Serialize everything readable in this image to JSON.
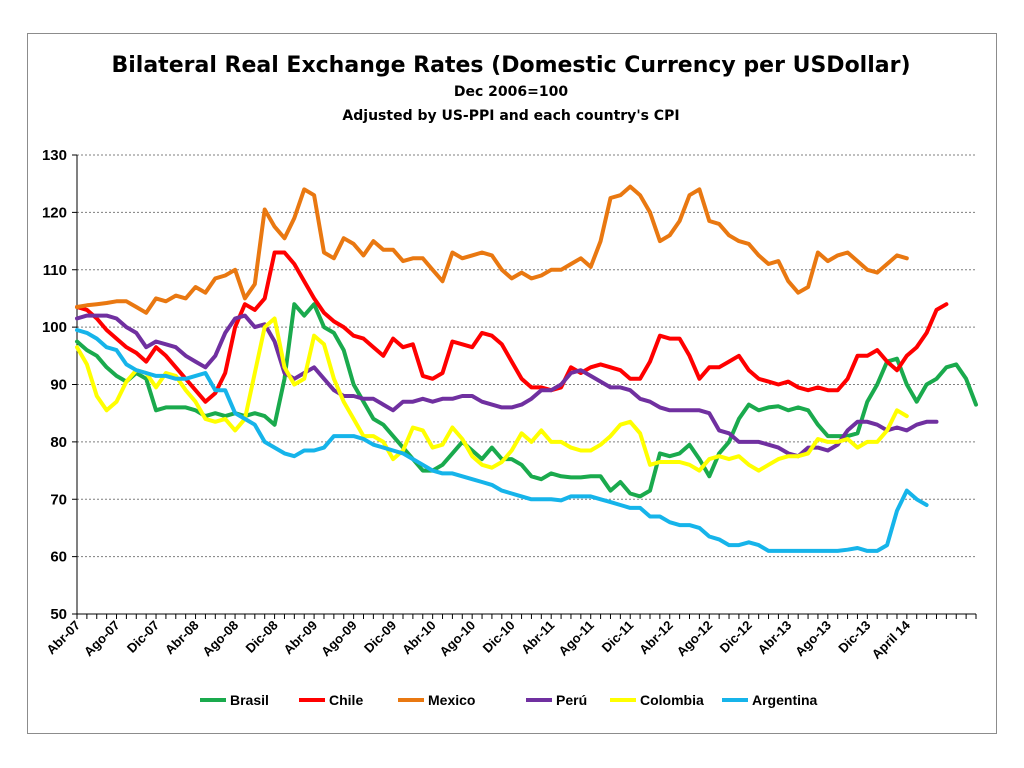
{
  "chart_data": {
    "type": "line",
    "title": "Bilateral Real Exchange Rates (Domestic Currency per USDollar)",
    "subtitle1": "Dec 2006=100",
    "subtitle2": "Adjusted by US-PPI and each country's CPI",
    "xlabel": "",
    "ylabel": "",
    "ylim": [
      50,
      130
    ],
    "yticks": [
      50,
      60,
      70,
      80,
      90,
      100,
      110,
      120,
      130
    ],
    "grid": true,
    "legend_position": "bottom",
    "x_tick_labels": [
      "Abr-07",
      "Ago-07",
      "Dic-07",
      "Abr-08",
      "Ago-08",
      "Dic-08",
      "Abr-09",
      "Ago-09",
      "Dic-09",
      "Abr-10",
      "Ago-10",
      "Dic-10",
      "Abr-11",
      "Ago-11",
      "Dic-11",
      "Abr-12",
      "Ago-12",
      "Dic-12",
      "Abr-13",
      "Ago-13",
      "Dic-13",
      "April 14"
    ],
    "x_start": "Abr-07",
    "x_end": "April 14",
    "series": [
      {
        "name": "Brasil",
        "color": "#1aaa4d",
        "values": [
          97.5,
          96,
          95,
          93,
          91.5,
          90.5,
          92,
          91,
          85.5,
          86,
          86,
          86,
          85.5,
          84.5,
          85,
          84.5,
          85,
          84.5,
          85,
          84.5,
          83,
          91,
          104,
          102,
          104,
          100,
          99,
          96,
          90,
          87,
          84,
          83,
          81,
          79,
          77,
          75,
          75,
          76,
          78,
          80,
          78.5,
          77,
          79,
          77,
          77,
          76,
          74,
          73.5,
          74.5,
          74,
          73.8,
          73.8,
          74,
          74,
          71.5,
          73,
          71,
          70.5,
          71.5,
          78,
          77.5,
          78,
          79.5,
          77,
          74,
          78,
          80,
          84,
          86.5,
          85.5,
          86,
          86.2,
          85.5,
          86,
          85.5,
          83,
          81,
          81,
          81,
          81.5,
          87,
          90,
          94,
          94.5,
          90,
          87,
          90,
          91,
          93,
          93.5,
          91,
          86.5
        ]
      },
      {
        "name": "Chile",
        "color": "#ff0000",
        "values": [
          103.5,
          103,
          101.5,
          99.5,
          98,
          96.5,
          95.5,
          94,
          96.5,
          95,
          93,
          91,
          89,
          87,
          88.5,
          92,
          100,
          104,
          103,
          105,
          113,
          113,
          111,
          108,
          105,
          102.5,
          101,
          100,
          98.5,
          98,
          96.5,
          95,
          98,
          96.5,
          97,
          91.5,
          91,
          92,
          97.5,
          97,
          96.5,
          99,
          98.5,
          97,
          94,
          91,
          89.5,
          89.5,
          89,
          89.5,
          93,
          92,
          93,
          93.5,
          93,
          92.5,
          91,
          91,
          94,
          98.5,
          98,
          98,
          95,
          91,
          93,
          93,
          94,
          95,
          92.5,
          91,
          90.5,
          90,
          90.5,
          89.5,
          89,
          89.5,
          89,
          89,
          91,
          95,
          95,
          96,
          94,
          92.5,
          95,
          96.5,
          99,
          103,
          104
        ]
      },
      {
        "name": "Mexico",
        "color": "#e97811",
        "values": [
          103.5,
          103.8,
          104,
          104.2,
          104.5,
          104.5,
          103.5,
          102.5,
          105,
          104.5,
          105.5,
          105,
          107,
          106,
          108.5,
          109,
          110,
          105,
          107.5,
          120.5,
          117.5,
          115.5,
          119,
          124,
          123,
          113,
          112,
          115.5,
          114.5,
          112.5,
          115,
          113.5,
          113.5,
          111.5,
          112,
          112,
          110,
          108,
          113,
          112,
          112.5,
          113,
          112.5,
          110,
          108.5,
          109.5,
          108.5,
          109,
          110,
          110,
          111,
          112,
          110.5,
          115,
          122.5,
          123,
          124.5,
          123,
          120,
          115,
          116,
          118.5,
          123,
          124,
          118.5,
          118,
          116,
          115,
          114.5,
          112.5,
          111,
          111.5,
          108,
          106,
          107,
          113,
          111.5,
          112.5,
          113,
          111.5,
          110,
          109.5,
          111,
          112.5,
          112
        ]
      },
      {
        "name": "Perú",
        "color": "#7030a0",
        "values": [
          101.5,
          102,
          102,
          102,
          101.5,
          100,
          99,
          96.5,
          97.5,
          97,
          96.5,
          95,
          94,
          93,
          95,
          99,
          101.5,
          102,
          100,
          100.5,
          97.5,
          92,
          91,
          92,
          93,
          91,
          89,
          88,
          88,
          87.5,
          87.5,
          86.5,
          85.5,
          87,
          87,
          87.5,
          87,
          87.5,
          87.5,
          88,
          88,
          87,
          86.5,
          86,
          86,
          86.5,
          87.5,
          89,
          89,
          90,
          92,
          92.5,
          91.5,
          90.5,
          89.5,
          89.5,
          89,
          87.5,
          87,
          86,
          85.5,
          85.5,
          85.5,
          85.5,
          85,
          82,
          81.5,
          80,
          80,
          80,
          79.5,
          79,
          78,
          77.5,
          79,
          79,
          78.5,
          79.5,
          82,
          83.5,
          83.5,
          83,
          82,
          82.5,
          82,
          83,
          83.5,
          83.5
        ]
      },
      {
        "name": "Colombia",
        "color": "#ffff00",
        "values": [
          96.5,
          93.5,
          88,
          85.5,
          87,
          90.5,
          92.5,
          92,
          89.5,
          92,
          91.5,
          89,
          87,
          84,
          83.5,
          84,
          82,
          84,
          92,
          100,
          101.5,
          93,
          90,
          91,
          98.5,
          97,
          91,
          87,
          84,
          81,
          81,
          80,
          77,
          78.5,
          82.5,
          82,
          79,
          79.5,
          82.5,
          80.5,
          77.5,
          76,
          75.5,
          76.5,
          78.5,
          81.5,
          80,
          82,
          80,
          80,
          79,
          78.5,
          78.5,
          79.5,
          81,
          83,
          83.5,
          81.5,
          76,
          76.5,
          76.5,
          76.5,
          76,
          75,
          77,
          77.5,
          77,
          77.5,
          76,
          75,
          76,
          77,
          77.5,
          77.5,
          78,
          80.5,
          80,
          80,
          80.5,
          79,
          80,
          80,
          82,
          85.5,
          84.5
        ]
      },
      {
        "name": "Argentina",
        "color": "#16b4ea",
        "values": [
          99.5,
          99,
          98,
          96.5,
          96,
          93.5,
          92.5,
          92,
          91.5,
          91.5,
          91,
          91,
          91.5,
          92,
          89,
          89,
          85,
          84,
          83,
          80,
          79,
          78,
          77.5,
          78.5,
          78.5,
          79,
          81,
          81,
          81,
          80.5,
          79.5,
          79,
          78.5,
          78,
          77,
          76,
          75,
          74.5,
          74.5,
          74,
          73.5,
          73,
          72.5,
          71.5,
          71,
          70.5,
          70,
          70,
          70,
          69.8,
          70.5,
          70.5,
          70.5,
          70,
          69.5,
          69,
          68.5,
          68.5,
          67,
          67,
          66,
          65.5,
          65.5,
          65,
          63.5,
          63,
          62,
          62,
          62.5,
          62,
          61,
          61,
          61,
          61,
          61,
          61,
          61,
          61,
          61.2,
          61.5,
          61,
          61,
          62,
          68,
          71.5,
          70,
          69
        ]
      }
    ]
  }
}
